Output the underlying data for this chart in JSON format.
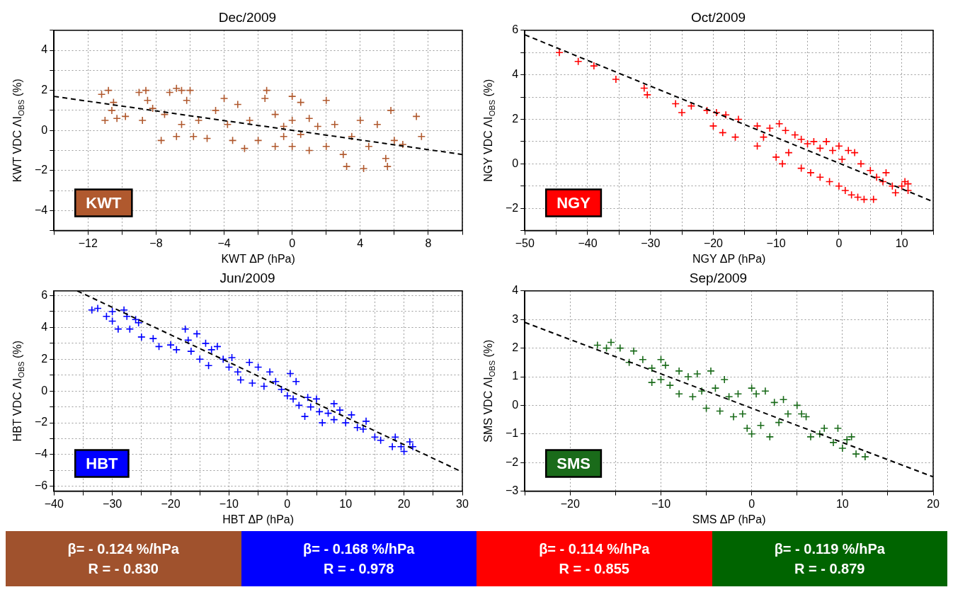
{
  "chart_data": [
    {
      "type": "scatter",
      "title": "Dec/2009",
      "xlabel": "KWT ΔP (hPa)",
      "ylabel": "KWT VDC ΛI$_{OBS}$ (%)",
      "grid": true,
      "legend": "bottom left",
      "xlim": [
        -14,
        10
      ],
      "ylim": [
        -5,
        5
      ],
      "xticks": [
        {
          "value": -14,
          "label": null
        },
        -12,
        {
          "value": -10,
          "label": null
        },
        -8,
        {
          "value": -6,
          "label": null
        },
        -4,
        {
          "value": -2,
          "label": null
        },
        0,
        {
          "value": 2,
          "label": null
        },
        4,
        {
          "value": 6,
          "label": null
        },
        8,
        {
          "value": 10,
          "label": null
        }
      ],
      "yticks": [
        {
          "value": -5,
          "label": null
        },
        -4,
        {
          "value": -3,
          "label": null
        },
        -2,
        {
          "value": -1,
          "label": null
        },
        0,
        {
          "value": 1,
          "label": null
        },
        2,
        {
          "value": 3,
          "label": null
        },
        4,
        {
          "value": 5,
          "label": null
        }
      ],
      "series": [
        {
          "name": "KWT",
          "type": "scatter",
          "marker": "cross",
          "color": "#b0592e",
          "x": [
            -11.2,
            -10.8,
            -11,
            -10.5,
            -10.6,
            -10.3,
            -9.8,
            -9,
            -8.6,
            -8.5,
            -8.8,
            -8.2,
            -7.7,
            -7.5,
            -7.2,
            -6.8,
            -6.5,
            -6.2,
            -6,
            -6.5,
            -5.8,
            -6.8,
            -5.5,
            -5,
            -4.5,
            -4,
            -3.8,
            -3.5,
            -3.2,
            -2.8,
            -2.5,
            -2,
            -1.5,
            -1.6,
            -1,
            -1,
            -0.5,
            -0.5,
            0,
            0,
            0,
            0.5,
            0.5,
            1,
            1,
            1.5,
            2,
            2,
            2.5,
            3,
            3.2,
            3.5,
            4,
            4.2,
            4.5,
            5,
            5.5,
            5.6,
            6,
            6.5,
            5.8,
            7.3,
            7.6
          ],
          "values": [
            1.8,
            2,
            0.5,
            1.4,
            1,
            0.6,
            0.7,
            1.9,
            2,
            1.5,
            0.5,
            1.1,
            -0.5,
            0.8,
            1.9,
            2.1,
            2,
            1.5,
            2,
            0.3,
            -0.3,
            -0.3,
            0.5,
            -0.4,
            1,
            1.6,
            0.3,
            -0.5,
            1.3,
            -0.9,
            0.5,
            -0.5,
            2,
            1.6,
            -0.8,
            0.8,
            0.2,
            -0.3,
            1.7,
            0.5,
            -0.8,
            1.4,
            -0.2,
            0.6,
            -1,
            0.2,
            1.5,
            -0.8,
            0.3,
            -1.2,
            -1.8,
            -0.3,
            0.5,
            -1.9,
            -0.8,
            0.3,
            -1.4,
            -1.8,
            -0.5,
            -0.7,
            1,
            0.7,
            -0.3
          ]
        },
        {
          "type": "line",
          "marker": "none",
          "line_style": "dashed",
          "color": "#000000",
          "x": [
            -14,
            10
          ],
          "values": [
            1.7,
            -1.2
          ]
        }
      ]
    },
    {
      "type": "scatter",
      "title": "Oct/2009",
      "xlabel": "NGY ΔP (hPa)",
      "ylabel": "NGY VDC ΛI$_{OBS}$ (%)",
      "grid": true,
      "legend": "bottom left",
      "xlim": [
        -50,
        15
      ],
      "ylim": [
        -3,
        6
      ],
      "xticks": [
        -50,
        {
          "value": -45,
          "label": null
        },
        -40,
        {
          "value": -35,
          "label": null
        },
        -30,
        {
          "value": -25,
          "label": null
        },
        -20,
        {
          "value": -15,
          "label": null
        },
        -10,
        {
          "value": -5,
          "label": null
        },
        0,
        {
          "value": 5,
          "label": null
        },
        10,
        {
          "value": 15,
          "label": null
        }
      ],
      "yticks": [
        {
          "value": -3,
          "label": null
        },
        -2,
        {
          "value": -1,
          "label": null
        },
        0,
        {
          "value": 1,
          "label": null
        },
        2,
        {
          "value": 3,
          "label": null
        },
        4,
        {
          "value": 5,
          "label": null
        },
        6
      ],
      "series": [
        {
          "name": "NGY",
          "type": "scatter",
          "marker": "cross",
          "color": "#ff0000",
          "x": [
            -44.5,
            -41.5,
            -39,
            -35.5,
            -31,
            -30.5,
            -26,
            -25,
            -23.5,
            -21,
            -20,
            -19.5,
            -18.5,
            -18,
            -16.5,
            -16,
            -13,
            -13,
            -12,
            -11,
            -10,
            -9.5,
            -9,
            -8.5,
            -8,
            -7,
            -6,
            -6,
            -5,
            -4.5,
            -4,
            -3,
            -3,
            -2,
            -1.5,
            -1,
            0,
            0,
            0.5,
            1,
            1.5,
            2,
            2.5,
            3,
            3.5,
            4,
            5,
            5.5,
            6,
            7,
            7.5,
            8.5,
            9,
            10,
            10.5,
            11,
            11
          ],
          "values": [
            5,
            4.6,
            4.4,
            3.8,
            3.4,
            3.1,
            2.7,
            2.3,
            2.6,
            2.4,
            1.7,
            2.3,
            1.4,
            2.2,
            1.2,
            2,
            0.8,
            1.7,
            1.2,
            1.6,
            0.3,
            1.8,
            0,
            1.5,
            0.5,
            1.3,
            -0.2,
            1.1,
            0.9,
            -0.4,
            1,
            -0.6,
            0.7,
            1,
            -0.8,
            0.6,
            0.8,
            -1,
            0.2,
            -1.2,
            0.6,
            -1.4,
            0.5,
            -1.5,
            0,
            -1.6,
            -0.3,
            -1.6,
            -0.6,
            -0.8,
            -0.4,
            -1,
            -1.3,
            -1,
            -0.8,
            -0.9,
            -1.2
          ]
        },
        {
          "type": "line",
          "marker": "none",
          "line_style": "dashed",
          "color": "#000000",
          "x": [
            -50,
            15
          ],
          "values": [
            5.8,
            -1.7
          ]
        }
      ]
    },
    {
      "type": "scatter",
      "title": "Jun/2009",
      "xlabel": "HBT ΔP (hPa)",
      "ylabel": "HBT VDC ΛI$_{OBS}$ (%)",
      "grid": true,
      "legend": "bottom left",
      "xlim": [
        -40,
        30
      ],
      "ylim": [
        -6.3,
        6.3
      ],
      "xticks": [
        -40,
        {
          "value": -35,
          "label": null
        },
        -30,
        {
          "value": -25,
          "label": null
        },
        -20,
        {
          "value": -15,
          "label": null
        },
        -10,
        {
          "value": -5,
          "label": null
        },
        0,
        {
          "value": 5,
          "label": null
        },
        10,
        {
          "value": 15,
          "label": null
        },
        20,
        {
          "value": 25,
          "label": null
        },
        30
      ],
      "yticks": [
        -6,
        {
          "value": -5,
          "label": null
        },
        -4,
        {
          "value": -3,
          "label": null
        },
        -2,
        {
          "value": -1,
          "label": null
        },
        0,
        {
          "value": 1,
          "label": null
        },
        2,
        {
          "value": 3,
          "label": null
        },
        4,
        {
          "value": 5,
          "label": null
        },
        6
      ],
      "series": [
        {
          "name": "HBT",
          "type": "scatter",
          "marker": "cross",
          "color": "#0000ff",
          "x": [
            -33.5,
            -32.5,
            -31,
            -30,
            -30,
            -29,
            -28,
            -27.5,
            -27,
            -26,
            -25.5,
            -25,
            -23,
            -22,
            -20,
            -19,
            -17.5,
            -17,
            -16.5,
            -15.5,
            -15,
            -14,
            -13.5,
            -13,
            -12,
            -11,
            -10,
            -9.5,
            -8.5,
            -8,
            -6.5,
            -6,
            -5,
            -4,
            -3,
            -2,
            -1,
            0,
            0.5,
            1,
            1.5,
            2,
            3,
            3.5,
            4,
            5,
            5.5,
            6,
            7,
            8,
            8,
            9,
            10,
            11,
            12,
            13,
            13.5,
            15,
            16,
            18,
            18.5,
            19.5,
            20,
            21,
            21.5
          ],
          "values": [
            5.1,
            5.2,
            4.7,
            4.4,
            5,
            3.9,
            5.1,
            4.7,
            3.9,
            4.5,
            4.3,
            3.4,
            3.3,
            2.8,
            2.9,
            2.6,
            3.9,
            3.2,
            2.5,
            3.6,
            2,
            3,
            1.6,
            2.6,
            2.8,
            2,
            1.5,
            2.1,
            1.2,
            0.7,
            1.8,
            0.5,
            1.5,
            0.3,
            1.2,
            0.6,
            0.1,
            -0.3,
            1.1,
            -0.5,
            0.6,
            -0.9,
            -1.6,
            -0.4,
            -1,
            -0.5,
            -1.3,
            -2,
            -1.4,
            -0.8,
            -1.8,
            -1.2,
            -2,
            -1.5,
            -2.3,
            -2.4,
            -1.9,
            -2.9,
            -3.1,
            -3.5,
            -2.9,
            -3.5,
            -3.8,
            -3.2,
            -3.5
          ]
        },
        {
          "type": "line",
          "marker": "none",
          "line_style": "dashed",
          "color": "#000000",
          "x": [
            -36,
            30
          ],
          "values": [
            6.3,
            -5.1
          ]
        }
      ]
    },
    {
      "type": "scatter",
      "title": "Sep/2009",
      "xlabel": "SMS ΔP (hPa)",
      "ylabel": "SMS VDC ΛI$_{OBS}$ (%)",
      "grid": true,
      "legend": "bottom left",
      "xlim": [
        -25,
        20
      ],
      "ylim": [
        -3,
        4
      ],
      "xticks": [
        {
          "value": -25,
          "label": null
        },
        -20,
        {
          "value": -15,
          "label": null
        },
        -10,
        {
          "value": -5,
          "label": null
        },
        0,
        {
          "value": 5,
          "label": null
        },
        10,
        {
          "value": 15,
          "label": null
        },
        20
      ],
      "yticks": [
        -3,
        -2,
        -1,
        0,
        1,
        2,
        3,
        4
      ],
      "series": [
        {
          "name": "SMS",
          "type": "scatter",
          "marker": "cross",
          "color": "#1a6b1a",
          "x": [
            -17,
            -16,
            -15.5,
            -14.5,
            -13.5,
            -13,
            -12,
            -11,
            -11,
            -10,
            -10,
            -9.5,
            -9,
            -8,
            -8,
            -7,
            -6.5,
            -6,
            -5.5,
            -5,
            -4.5,
            -4,
            -3.5,
            -3,
            -2.5,
            -2,
            -1.5,
            -1,
            -0.5,
            0,
            0,
            0.5,
            1,
            1.5,
            2,
            2.5,
            3,
            3.5,
            4,
            5,
            5.5,
            6,
            6.5,
            7.5,
            8,
            9,
            9.5,
            10,
            10.5,
            11,
            11.5,
            12.5
          ],
          "values": [
            2.1,
            2,
            2.2,
            2,
            1.5,
            1.9,
            1.6,
            1.3,
            0.8,
            1.6,
            0.9,
            1.4,
            0.7,
            1.2,
            0.4,
            1,
            0.3,
            1.1,
            0.5,
            -0.1,
            1.2,
            0.6,
            -0.2,
            0.9,
            0.3,
            -0.4,
            0.4,
            -0.3,
            -0.8,
            0.6,
            -1,
            0.4,
            -0.7,
            0.5,
            -1.1,
            0.1,
            -0.6,
            0.2,
            -0.3,
            0,
            -0.3,
            -0.4,
            -1.1,
            -1,
            -0.8,
            -1.3,
            -0.8,
            -1.5,
            -1.2,
            -1.1,
            -1.7,
            -1.8
          ]
        },
        {
          "type": "line",
          "marker": "none",
          "line_style": "dashed",
          "color": "#000000",
          "x": [
            -25,
            20
          ],
          "values": [
            2.9,
            -2.5
          ]
        }
      ]
    },
    {
      "type": "other",
      "colors": [
        "#a0522d",
        "#0000ff",
        "#ff0000",
        "#006400"
      ],
      "annotations": [
        "β= - 0.124 %/hPa",
        "R = - 0.830",
        "β= - 0.168 %/hPa",
        "R = - 0.978",
        "β= - 0.114 %/hPa",
        "R = - 0.855",
        "β= - 0.119 %/hPa",
        "R = - 0.879"
      ]
    }
  ]
}
